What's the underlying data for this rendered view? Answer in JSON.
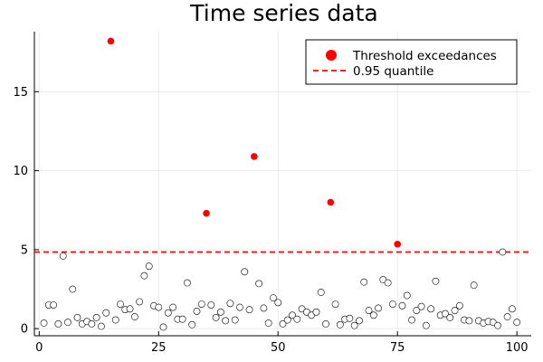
{
  "chart_data": {
    "type": "scatter",
    "title": "Time series data",
    "xlabel": "",
    "ylabel": "",
    "xlim": [
      -1,
      103
    ],
    "ylim": [
      -0.45,
      18.8
    ],
    "xticks": [
      0,
      25,
      50,
      75,
      100
    ],
    "yticks": [
      0,
      5,
      10,
      15
    ],
    "grid": true,
    "legend_position": "top-right",
    "series": [
      {
        "name": "Threshold exceedances",
        "style": "filled-marker",
        "color": "#ff0000",
        "points": [
          [
            15,
            18.2
          ],
          [
            35,
            7.3
          ],
          [
            45,
            10.9
          ],
          [
            61,
            8.0
          ],
          [
            75,
            5.35
          ]
        ]
      },
      {
        "style": "hollow-marker",
        "color": "#000000",
        "points": [
          [
            1,
            0.35
          ],
          [
            2,
            1.5
          ],
          [
            3,
            1.5
          ],
          [
            4,
            0.3
          ],
          [
            5,
            4.6
          ],
          [
            6,
            0.4
          ],
          [
            7,
            2.5
          ],
          [
            8,
            0.7
          ],
          [
            9,
            0.3
          ],
          [
            10,
            0.45
          ],
          [
            11,
            0.3
          ],
          [
            12,
            0.7
          ],
          [
            13,
            0.15
          ],
          [
            14,
            1.0
          ],
          [
            16,
            0.55
          ],
          [
            17,
            1.55
          ],
          [
            18,
            1.2
          ],
          [
            19,
            1.25
          ],
          [
            20,
            0.75
          ],
          [
            21,
            1.7
          ],
          [
            22,
            3.35
          ],
          [
            23,
            3.95
          ],
          [
            24,
            1.45
          ],
          [
            25,
            1.35
          ],
          [
            26,
            0.1
          ],
          [
            27,
            1.0
          ],
          [
            28,
            1.35
          ],
          [
            29,
            0.6
          ],
          [
            30,
            0.6
          ],
          [
            31,
            2.9
          ],
          [
            32,
            0.25
          ],
          [
            33,
            1.1
          ],
          [
            34,
            1.55
          ],
          [
            36,
            1.5
          ],
          [
            37,
            0.7
          ],
          [
            38,
            1.05
          ],
          [
            39,
            0.5
          ],
          [
            40,
            1.6
          ],
          [
            41,
            0.55
          ],
          [
            42,
            1.35
          ],
          [
            43,
            3.6
          ],
          [
            44,
            1.2
          ],
          [
            46,
            2.85
          ],
          [
            47,
            1.3
          ],
          [
            48,
            0.35
          ],
          [
            49,
            1.95
          ],
          [
            50,
            1.65
          ],
          [
            51,
            0.3
          ],
          [
            52,
            0.55
          ],
          [
            53,
            0.85
          ],
          [
            54,
            0.6
          ],
          [
            55,
            1.25
          ],
          [
            56,
            1.05
          ],
          [
            57,
            0.85
          ],
          [
            58,
            1.05
          ],
          [
            59,
            2.3
          ],
          [
            60,
            0.3
          ],
          [
            62,
            1.55
          ],
          [
            63,
            0.25
          ],
          [
            64,
            0.6
          ],
          [
            65,
            0.65
          ],
          [
            66,
            0.2
          ],
          [
            67,
            0.5
          ],
          [
            68,
            2.95
          ],
          [
            69,
            1.15
          ],
          [
            70,
            0.85
          ],
          [
            71,
            1.3
          ],
          [
            72,
            3.1
          ],
          [
            73,
            2.9
          ],
          [
            74,
            1.55
          ],
          [
            76,
            1.45
          ],
          [
            77,
            2.1
          ],
          [
            78,
            0.55
          ],
          [
            79,
            1.15
          ],
          [
            80,
            1.4
          ],
          [
            81,
            0.2
          ],
          [
            82,
            1.25
          ],
          [
            83,
            3.0
          ],
          [
            84,
            0.85
          ],
          [
            85,
            0.95
          ],
          [
            86,
            0.7
          ],
          [
            87,
            1.15
          ],
          [
            88,
            1.45
          ],
          [
            89,
            0.55
          ],
          [
            90,
            0.5
          ],
          [
            91,
            2.75
          ],
          [
            92,
            0.5
          ],
          [
            93,
            0.35
          ],
          [
            94,
            0.45
          ],
          [
            95,
            0.4
          ],
          [
            96,
            0.2
          ],
          [
            97,
            4.85
          ],
          [
            98,
            0.75
          ],
          [
            99,
            1.25
          ],
          [
            100,
            0.4
          ]
        ]
      },
      {
        "name": "0.95 quantile",
        "style": "dashed-hline",
        "color": "#ff0000",
        "y": 4.85
      }
    ]
  }
}
